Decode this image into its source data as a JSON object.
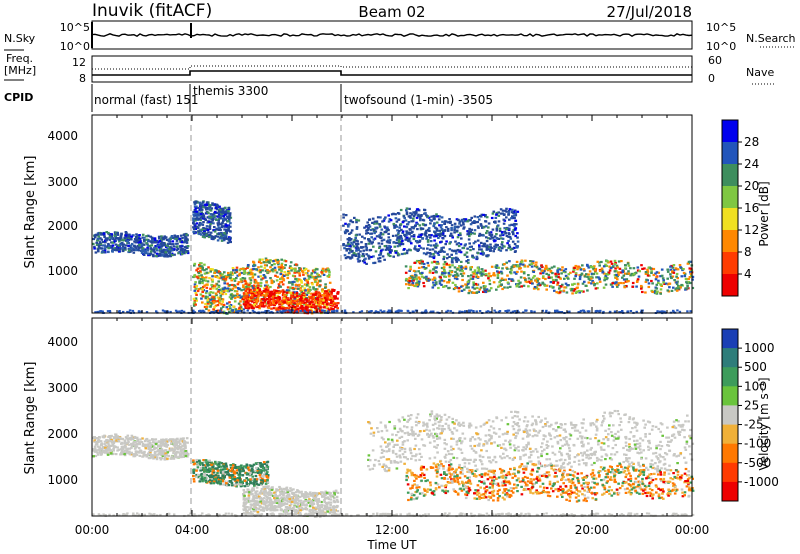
{
  "header": {
    "title": "Inuvik (fitACF)",
    "beam": "Beam 02",
    "date": "27/Jul/2018"
  },
  "top_panels": {
    "nsky_label": "N.Sky",
    "nsky_ticks": [
      "10^5",
      "10^0"
    ],
    "nsearch_label": "N.Search",
    "nsearch_ticks": [
      "10^5",
      "10^0"
    ],
    "freq_label_1": "Freq.",
    "freq_label_2": "[MHz]",
    "freq_ticks": [
      "12",
      "8"
    ],
    "nave_label": "Nave",
    "nave_ticks": [
      "60",
      "0"
    ],
    "cpid_label": "CPID",
    "cpid_segments": [
      {
        "label": "normal (fast) 151",
        "start_hour": 0
      },
      {
        "label": "themis 3300",
        "start_hour": 4
      },
      {
        "label": "twofsound (1-min) -3505",
        "start_hour": 10
      }
    ]
  },
  "chart_data": [
    {
      "type": "heatmap",
      "panel": "power",
      "ylabel": "Slant Range [km]",
      "yticks": [
        "4000",
        "3000",
        "2000",
        "1000"
      ],
      "ylim": [
        180,
        4550
      ],
      "xlim": [
        0,
        24
      ],
      "colorbar_label": "Power [dB]",
      "colorbar_ticks": [
        "28",
        "24",
        "20",
        "16",
        "12",
        "8",
        "4"
      ],
      "colorbar_colors": [
        "#0000ee",
        "#2255bb",
        "#3e8e5e",
        "#7fc742",
        "#f0e020",
        "#ff8800",
        "#ff3c00",
        "#ee0000"
      ],
      "scatter_regions": [
        {
          "hours": [
            0.0,
            3.8
          ],
          "range_km": [
            1500,
            1950
          ],
          "dominant": "dark-blue"
        },
        {
          "hours": [
            4.0,
            5.5
          ],
          "range_km": [
            1800,
            2600
          ],
          "dominant": "dark-blue"
        },
        {
          "hours": [
            4.0,
            9.5
          ],
          "range_km": [
            300,
            1300
          ],
          "dominant": "orange-red"
        },
        {
          "hours": [
            6.0,
            9.8
          ],
          "range_km": [
            250,
            700
          ],
          "dominant": "red"
        },
        {
          "hours": [
            12.5,
            24.0
          ],
          "range_km": [
            700,
            1300
          ],
          "dominant": "orange-green"
        },
        {
          "hours": [
            10.0,
            17.0
          ],
          "range_km": [
            1400,
            2400
          ],
          "dominant": "dark-blue"
        }
      ]
    },
    {
      "type": "heatmap",
      "panel": "velocity",
      "ylabel": "Slant Range [km]",
      "yticks": [
        "4000",
        "3000",
        "2000",
        "1000"
      ],
      "ylim": [
        180,
        4550
      ],
      "xlim": [
        0,
        24
      ],
      "xticks": [
        "00:00",
        "04:00",
        "08:00",
        "12:00",
        "16:00",
        "20:00",
        "00:00"
      ],
      "xlabel": "Time UT",
      "colorbar_label": "Velocity [m s⁻¹]",
      "colorbar_ticks": [
        "1000",
        "500",
        "100",
        "25",
        "-25",
        "-100",
        "-500",
        "-1000"
      ],
      "colorbar_colors": [
        "#1a3fb5",
        "#2e7d7a",
        "#3d9c5b",
        "#6ac43c",
        "#c8c8c4",
        "#f0b038",
        "#ff7800",
        "#ff3a00",
        "#ee0000"
      ],
      "scatter_regions": [
        {
          "hours": [
            0.0,
            3.8
          ],
          "range_km": [
            1500,
            1950
          ],
          "dominant": "grey"
        },
        {
          "hours": [
            4.0,
            7.0
          ],
          "range_km": [
            900,
            1400
          ],
          "dominant": "green"
        },
        {
          "hours": [
            6.0,
            9.8
          ],
          "range_km": [
            250,
            800
          ],
          "dominant": "grey"
        },
        {
          "hours": [
            12.5,
            24.0
          ],
          "range_km": [
            600,
            1300
          ],
          "dominant": "orange"
        },
        {
          "hours": [
            11.0,
            24.0
          ],
          "range_km": [
            1300,
            2400
          ],
          "dominant": "grey"
        }
      ]
    }
  ]
}
